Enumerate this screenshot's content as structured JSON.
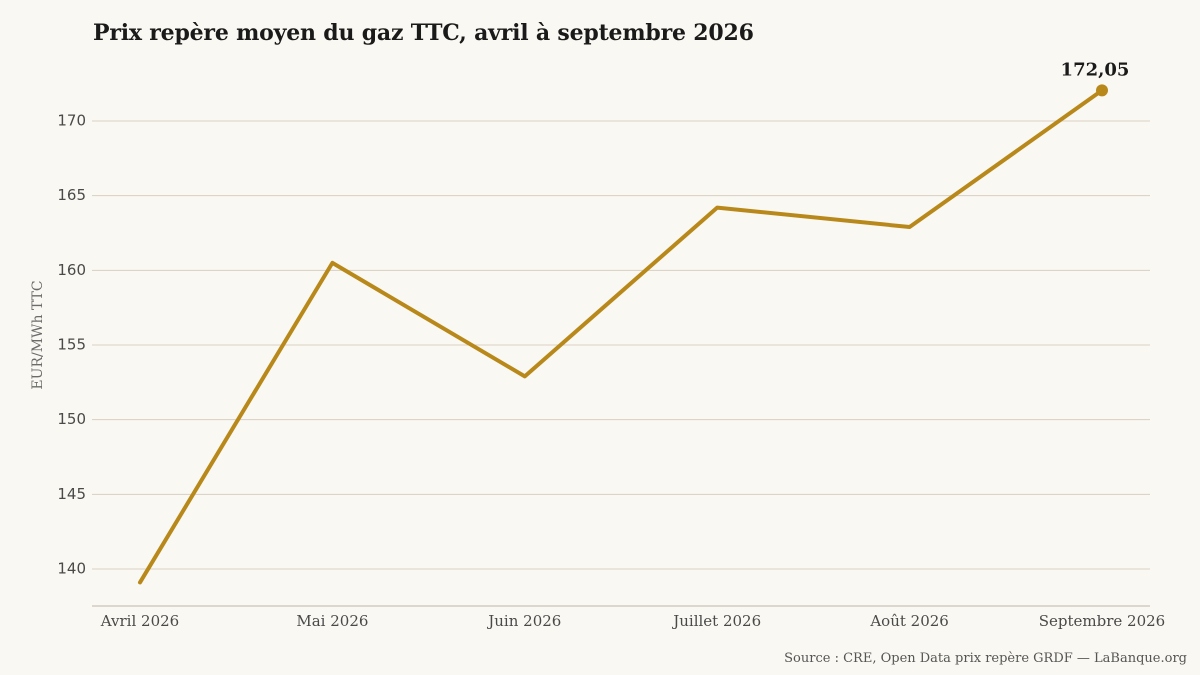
{
  "chart_data": {
    "type": "line",
    "title": "Prix repère moyen du gaz TTC, avril à septembre 2026",
    "xlabel": "",
    "ylabel": "EUR/MWh TTC",
    "categories": [
      "Avril 2026",
      "Mai 2026",
      "Juin 2026",
      "Juillet 2026",
      "Août 2026",
      "Septembre 2026"
    ],
    "series": [
      {
        "values": [
          139.1,
          160.5,
          152.9,
          164.2,
          162.9,
          172.05
        ],
        "color": "#B8891A"
      }
    ],
    "yticks": [
      140,
      145,
      150,
      155,
      160,
      165,
      170
    ],
    "ylim": [
      137.5,
      172
    ],
    "grid": "horizontal",
    "end_label": "172,05",
    "source": "Source : CRE, Open Data prix repère GRDF — LaBanque.org"
  }
}
